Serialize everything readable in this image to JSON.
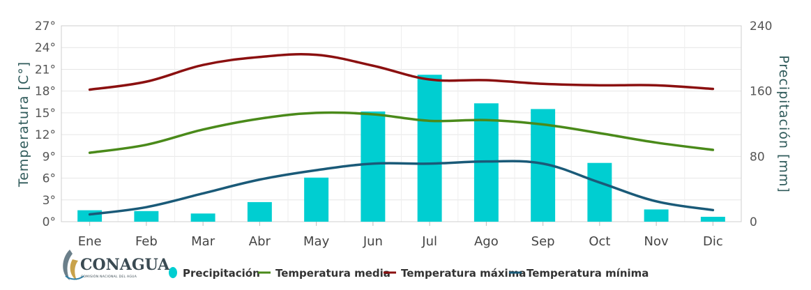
{
  "chart_data": {
    "type": "bar+line",
    "categories": [
      "Ene",
      "Feb",
      "Mar",
      "Abr",
      "May",
      "Jun",
      "Jul",
      "Ago",
      "Sep",
      "Oct",
      "Nov",
      "Dic"
    ],
    "left_axis": {
      "label": "Temperatura [C°]",
      "ticks": [
        "0°",
        "3°",
        "6°",
        "9°",
        "12°",
        "15°",
        "18°",
        "21°",
        "24°",
        "27°"
      ],
      "range": [
        0,
        27
      ]
    },
    "right_axis": {
      "label": "Precipitación [mm]",
      "ticks": [
        "0",
        "80",
        "160",
        "240"
      ],
      "range": [
        0,
        240
      ]
    },
    "bars": {
      "name": "Precipitación",
      "axis": "right",
      "color": "#00ced1",
      "values": [
        14,
        13,
        10,
        24,
        54,
        135,
        180,
        145,
        138,
        72,
        15,
        6
      ]
    },
    "series": [
      {
        "name": "Temperatura media",
        "axis": "left",
        "color": "#4a8a1a",
        "values": [
          9.5,
          10.6,
          12.7,
          14.2,
          15.0,
          14.8,
          13.9,
          14.0,
          13.4,
          12.2,
          10.9,
          9.9
        ]
      },
      {
        "name": "Temperatura máxima",
        "axis": "left",
        "color": "#8b1010",
        "values": [
          18.2,
          19.3,
          21.6,
          22.7,
          23.0,
          21.5,
          19.6,
          19.5,
          19.0,
          18.8,
          18.8,
          18.3
        ]
      },
      {
        "name": "Temperatura mínima",
        "axis": "left",
        "color": "#1a5a78",
        "values": [
          1.0,
          2.0,
          3.9,
          5.8,
          7.1,
          8.0,
          8.0,
          8.3,
          8.0,
          5.4,
          2.8,
          1.6
        ]
      }
    ],
    "legend_position": "bottom",
    "grid": true
  },
  "logo": {
    "name": "CONAGUA",
    "subtitle": "COMISIÓN NACIONAL DEL AGUA"
  }
}
